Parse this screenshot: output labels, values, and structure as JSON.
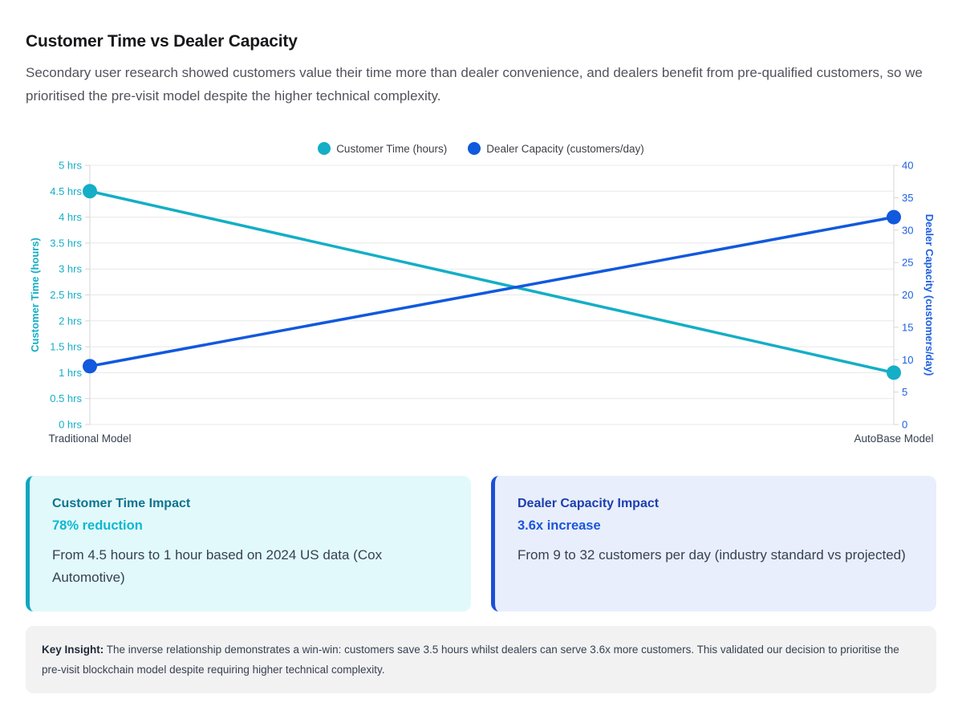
{
  "header": {
    "title": "Customer Time vs Dealer Capacity",
    "subtitle": "Secondary user research showed customers value their time more than dealer convenience, and dealers benefit from pre-qualified customers, so we prioritised the pre-visit model despite the higher technical complexity."
  },
  "chart_data": {
    "type": "line",
    "categories": [
      "Traditional Model",
      "AutoBase Model"
    ],
    "series": [
      {
        "name": "Customer Time (hours)",
        "axis": "left",
        "values": [
          4.5,
          1
        ],
        "color": "#14aec6"
      },
      {
        "name": "Dealer Capacity (customers/day)",
        "axis": "right",
        "values": [
          9,
          32
        ],
        "color": "#1159dd"
      }
    ],
    "left_axis": {
      "label": "Customer Time (hours)",
      "min": 0,
      "max": 5,
      "step": 0.5,
      "tick_suffix": " hrs",
      "color": "#14aec6"
    },
    "right_axis": {
      "label": "Dealer Capacity (customers/day)",
      "min": 0,
      "max": 40,
      "step": 5,
      "tick_suffix": "",
      "color": "#1c5fe0"
    },
    "grid": true,
    "legend_position": "top",
    "category_label_color": "#374151"
  },
  "cards": [
    {
      "title": "Customer Time Impact",
      "stat": "78% reduction",
      "description": "From 4.5 hours to 1 hour based on 2024 US data (Cox Automotive)",
      "accent_color": "#0ba7bf",
      "background_color": "#e2f9fb",
      "title_color": "#0e7490",
      "stat_color": "#0cb8d2"
    },
    {
      "title": "Dealer Capacity Impact",
      "stat": "3.6x increase",
      "description": "From 9 to 32 customers per day (industry standard vs projected)",
      "accent_color": "#1d4fd8",
      "background_color": "#e8eefb",
      "title_color": "#1c3faf",
      "stat_color": "#1a56db"
    }
  ],
  "insight": {
    "label": "Key Insight:",
    "text": "The inverse relationship demonstrates a win-win: customers save 3.5 hours whilst dealers can serve 3.6x more customers. This validated our decision to prioritise the pre-visit blockchain model despite requiring higher technical complexity."
  }
}
